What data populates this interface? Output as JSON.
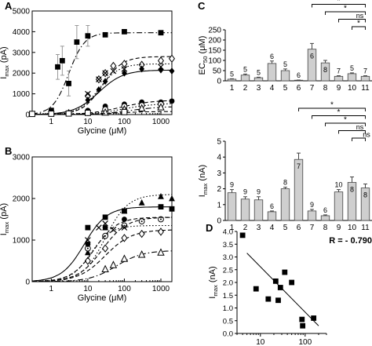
{
  "chart_data": [
    {
      "panel": "A",
      "type": "scatter",
      "xscale": "log",
      "xlabel": "Glycine (μM)",
      "ylabel": "I",
      "ylabel_sub": "max",
      "ylabel_unit": " (pA)",
      "xlim": [
        0.3,
        2000
      ],
      "ylim": [
        0,
        5000
      ],
      "xticks": [
        "1",
        "10",
        "100",
        "1000"
      ],
      "yticks": [
        "0",
        "1000",
        "2000",
        "3000",
        "4000",
        "5000"
      ],
      "series": [
        {
          "marker": "filled-square",
          "line": "dash-dot",
          "points": [
            [
              1,
              200
            ],
            [
              1.5,
              2300
            ],
            [
              2,
              2600
            ],
            [
              3,
              1500
            ],
            [
              5,
              3500
            ],
            [
              10,
              3800
            ],
            [
              30,
              3850
            ],
            [
              100,
              4000
            ],
            [
              1000,
              3950
            ]
          ],
          "err": [
            0,
            600,
            700,
            600,
            800,
            500,
            0,
            0,
            0
          ],
          "fit": {
            "top": 3950,
            "ec50": 3,
            "hill": 2
          }
        },
        {
          "marker": "open-diamond",
          "line": "dash",
          "points": [
            [
              10,
              900
            ],
            [
              20,
              1700
            ],
            [
              30,
              2000
            ],
            [
              50,
              2350
            ],
            [
              100,
              2450
            ],
            [
              300,
              2400
            ],
            [
              1000,
              2600
            ],
            [
              2000,
              2700
            ]
          ],
          "fit": {
            "top": 2800,
            "ec50": 25,
            "hill": 1.6
          }
        },
        {
          "marker": "x",
          "line": "dot",
          "points": [
            [
              10,
              1000
            ],
            [
              20,
              1700
            ],
            [
              30,
              2000
            ],
            [
              50,
              2100
            ],
            [
              100,
              2200
            ],
            [
              1000,
              2300
            ]
          ],
          "fit": {
            "top": 2450,
            "ec50": 20,
            "hill": 1.6
          }
        },
        {
          "marker": "filled-diamond",
          "line": "solid",
          "points": [
            [
              3,
              100
            ],
            [
              10,
              700
            ],
            [
              20,
              1200
            ],
            [
              30,
              1600
            ],
            [
              100,
              2000
            ],
            [
              300,
              2200
            ],
            [
              1000,
              2150
            ],
            [
              2000,
              2100
            ]
          ],
          "fit": {
            "top": 2150,
            "ec50": 20,
            "hill": 1.3
          }
        },
        {
          "marker": "filled-circle",
          "line": "dash",
          "points": [
            [
              10,
              200
            ],
            [
              30,
              400
            ],
            [
              100,
              500
            ],
            [
              300,
              600
            ],
            [
              1000,
              600
            ],
            [
              2000,
              650
            ]
          ],
          "fit": {
            "top": 700,
            "ec50": 80,
            "hill": 1
          }
        },
        {
          "marker": "open-circle",
          "line": "dot",
          "points": [
            [
              10,
              80
            ],
            [
              30,
              250
            ],
            [
              100,
              400
            ],
            [
              300,
              450
            ],
            [
              1000,
              500
            ]
          ],
          "fit": {
            "top": 550,
            "ec50": 100,
            "hill": 1
          }
        },
        {
          "marker": "open-triangle",
          "line": "dash-dot",
          "points": [
            [
              30,
              100
            ],
            [
              100,
              250
            ],
            [
              300,
              300
            ],
            [
              1000,
              350
            ]
          ],
          "fit": {
            "top": 400,
            "ec50": 150,
            "hill": 1
          }
        },
        {
          "marker": "open-square",
          "line": "dash",
          "points": [
            [
              0.3,
              30
            ],
            [
              1,
              40
            ],
            [
              3,
              50
            ],
            [
              10,
              80
            ],
            [
              100,
              120
            ]
          ],
          "fit": {
            "top": 150,
            "ec50": 60,
            "hill": 1
          }
        }
      ]
    },
    {
      "panel": "B",
      "type": "scatter",
      "xscale": "log",
      "xlabel": "Glycine (μM)",
      "ylabel": "I",
      "ylabel_sub": "max",
      "ylabel_unit": " (pA)",
      "xlim": [
        0.3,
        2000
      ],
      "ylim": [
        0,
        3000
      ],
      "xticks": [
        "1",
        "10",
        "100",
        "1000"
      ],
      "yticks": [
        "0",
        "1000",
        "2000",
        "3000"
      ],
      "series": [
        {
          "marker": "filled-triangle",
          "line": "dot",
          "points": [
            [
              10,
              700
            ],
            [
              30,
              1300
            ],
            [
              100,
              1700
            ],
            [
              300,
              1900
            ],
            [
              1000,
              2050
            ],
            [
              2000,
              2000
            ]
          ],
          "fit": {
            "top": 2100,
            "ec50": 30,
            "hill": 1.4
          }
        },
        {
          "marker": "filled-square",
          "line": "solid",
          "points": [
            [
              10,
              1300
            ],
            [
              30,
              1550
            ],
            [
              100,
              1700
            ],
            [
              1000,
              1800
            ],
            [
              2000,
              1750
            ]
          ],
          "fit": {
            "top": 1800,
            "ec50": 8,
            "hill": 1.4
          }
        },
        {
          "marker": "open-circle-dot",
          "line": "dash",
          "points": [
            [
              10,
              800
            ],
            [
              30,
              1100
            ],
            [
              100,
              1350
            ],
            [
              300,
              1450
            ],
            [
              1000,
              1500
            ]
          ],
          "fit": {
            "top": 1550,
            "ec50": 25,
            "hill": 1.3
          }
        },
        {
          "marker": "x",
          "line": "dot",
          "points": [
            [
              10,
              1000
            ],
            [
              20,
              1300
            ],
            [
              30,
              1400
            ],
            [
              50,
              1250
            ],
            [
              100,
              1300
            ]
          ],
          "fit": {
            "top": 1350,
            "ec50": 12,
            "hill": 1.6
          }
        },
        {
          "marker": "open-diamond",
          "line": "dash",
          "points": [
            [
              10,
              500
            ],
            [
              30,
              800
            ],
            [
              100,
              1050
            ],
            [
              300,
              1150
            ],
            [
              1000,
              1200
            ]
          ],
          "fit": {
            "top": 1250,
            "ec50": 30,
            "hill": 1.2
          }
        },
        {
          "marker": "open-triangle",
          "line": "dash-dot",
          "points": [
            [
              30,
              300
            ],
            [
              50,
              400
            ],
            [
              100,
              550
            ],
            [
              300,
              650
            ],
            [
              1000,
              700
            ]
          ],
          "fit": {
            "top": 750,
            "ec50": 60,
            "hill": 1.2
          }
        },
        {
          "marker": "filled-circle",
          "line": "dash",
          "points": [
            [
              10,
              900
            ],
            [
              30,
              1300
            ],
            [
              100,
              1500
            ]
          ],
          "fit": {
            "top": 1550,
            "ec50": 15,
            "hill": 1.4
          }
        }
      ]
    },
    {
      "panel": "C",
      "type": "bar",
      "ylabel": "EC",
      "ylabel_sub": "50",
      "ylabel_unit": " (μM)",
      "categories": [
        "1",
        "2",
        "3",
        "4",
        "5",
        "6",
        "7",
        "8",
        "9",
        "10",
        "11"
      ],
      "values": [
        8,
        28,
        15,
        85,
        50,
        3,
        155,
        88,
        22,
        35,
        22
      ],
      "errors": [
        2,
        5,
        3,
        12,
        8,
        1,
        28,
        12,
        3,
        4,
        3
      ],
      "n_labels": [
        "5",
        "5",
        "5",
        "6",
        "5",
        "6",
        "6",
        "8",
        "7",
        "5",
        "7"
      ],
      "n_inside": [
        false,
        false,
        false,
        false,
        false,
        false,
        true,
        true,
        false,
        false,
        false
      ],
      "ylim": [
        0,
        250
      ],
      "yticks": [
        "0",
        "50",
        "100",
        "150",
        "200",
        "250"
      ],
      "comparisons": [
        {
          "from": "6",
          "to": "11",
          "label": "*"
        },
        {
          "from": "7",
          "to": "11",
          "label": "*"
        },
        {
          "from": "8",
          "to": "11",
          "label": "*"
        },
        {
          "from": "9",
          "to": "11",
          "label": "ns"
        },
        {
          "from": "10",
          "to": "11",
          "label": "*"
        }
      ]
    },
    {
      "panel": "C",
      "type": "bar",
      "ylabel": "I",
      "ylabel_sub": "max",
      "ylabel_unit": " (nA)",
      "categories": [
        "1",
        "2",
        "3",
        "4",
        "5",
        "6",
        "7",
        "8",
        "9",
        "10",
        "11"
      ],
      "values": [
        1.75,
        1.35,
        1.3,
        0.55,
        2.0,
        3.85,
        0.6,
        0.3,
        1.8,
        2.4,
        2.05
      ],
      "errors": [
        0.2,
        0.15,
        0.2,
        0.05,
        0.1,
        0.4,
        0.1,
        0.05,
        0.15,
        0.35,
        0.25
      ],
      "n_labels": [
        "9",
        "9",
        "9",
        "6",
        "8",
        "7",
        "9",
        "6",
        "10",
        "8",
        "8"
      ],
      "n_inside": [
        false,
        false,
        false,
        false,
        false,
        true,
        false,
        false,
        false,
        true,
        true
      ],
      "ylim": [
        0,
        5
      ],
      "yticks": [
        "0",
        "1",
        "2",
        "3",
        "4",
        "5"
      ],
      "comparisons": [
        {
          "from": "6",
          "to": "11",
          "label": "*"
        },
        {
          "from": "7",
          "to": "11",
          "label": "*"
        },
        {
          "from": "8",
          "to": "11",
          "label": "*"
        },
        {
          "from": "9",
          "to": "11",
          "label": "ns"
        },
        {
          "from": "10",
          "to": "11",
          "label": "ns"
        }
      ]
    },
    {
      "panel": "D",
      "type": "scatter",
      "xscale": "log",
      "xlabel": "EC",
      "xlabel_sub": "50",
      "xlabel_unit": " (μM)",
      "ylabel": "I",
      "ylabel_sub": "max",
      "ylabel_unit": " (nA)",
      "xlim": [
        3,
        300
      ],
      "ylim": [
        0,
        4
      ],
      "xticks": [
        "10",
        "100"
      ],
      "yticks": [
        "0.0",
        "0.5",
        "1.0",
        "1.5",
        "2.0",
        "2.5",
        "3.0",
        "3.5",
        "4.0"
      ],
      "points": [
        [
          4,
          3.85
        ],
        [
          8,
          1.75
        ],
        [
          15,
          1.35
        ],
        [
          22,
          2.05
        ],
        [
          25,
          1.3
        ],
        [
          28,
          1.8
        ],
        [
          35,
          2.4
        ],
        [
          50,
          2.0
        ],
        [
          85,
          0.55
        ],
        [
          88,
          0.3
        ],
        [
          155,
          0.6
        ]
      ],
      "fit": [
        [
          5,
          3.15
        ],
        [
          200,
          0.3
        ]
      ],
      "annotation": "R = - 0.790"
    }
  ],
  "panel_labels": {
    "a": "A",
    "b": "B",
    "c": "C",
    "d": "D"
  }
}
